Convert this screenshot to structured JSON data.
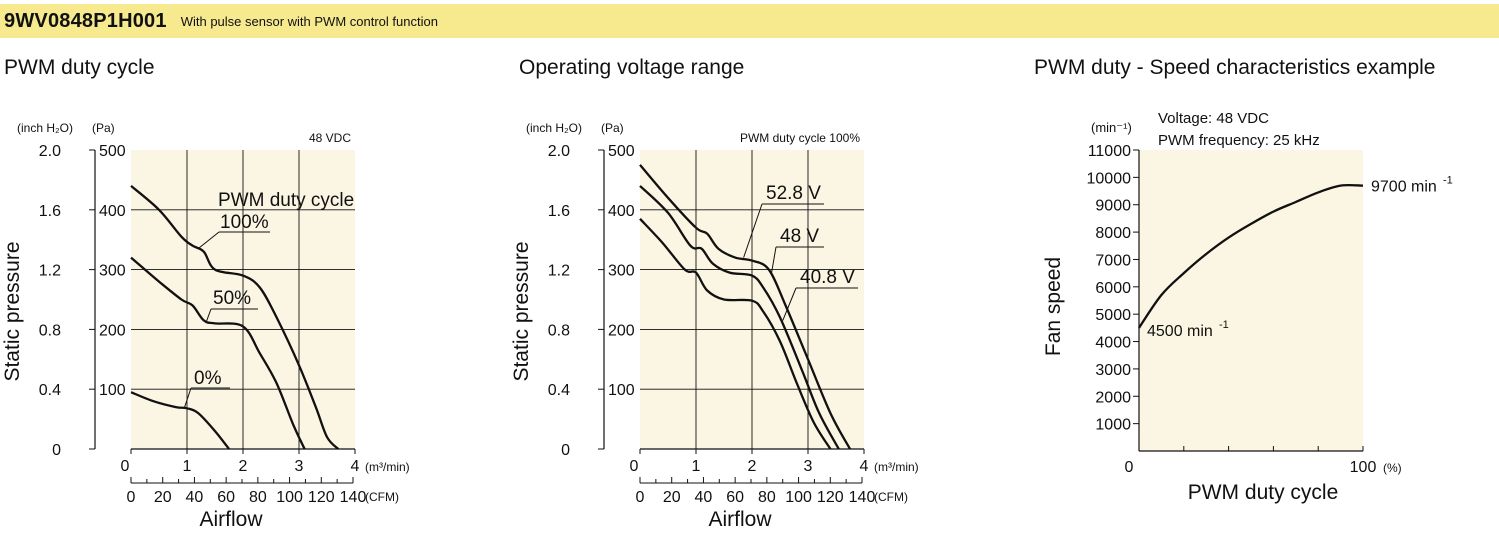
{
  "header": {
    "model": "9WV0848P1H001",
    "description": "With pulse sensor with PWM control function",
    "accent_color": "#f7e98e"
  },
  "chart_data": [
    {
      "type": "line",
      "title": "PWM duty cycle",
      "condition_label": "48 VDC",
      "ylabel": "Static pressure",
      "xlabel": "Airflow",
      "y_unit_left": "(inch H₂O)",
      "y_unit_right": "(Pa)",
      "x_unit_top": "(m³/min)",
      "x_unit_bottom": "(CFM)",
      "x_ticks": [
        "0",
        "1",
        "2",
        "3",
        "4"
      ],
      "x_ticks_cfm": [
        "0",
        "20",
        "40",
        "60",
        "80",
        "100",
        "120",
        "140"
      ],
      "y_ticks_inch": [
        "0",
        "0.4",
        "0.8",
        "1.2",
        "1.6",
        "2.0"
      ],
      "y_ticks_pa": [
        "100",
        "200",
        "300",
        "400",
        "500"
      ],
      "xlim": [
        0,
        4
      ],
      "ylim": [
        0,
        500
      ],
      "grid": true,
      "annotation_title": "PWM duty cycle",
      "series": [
        {
          "name": "100%",
          "x": [
            0,
            0.5,
            0.9,
            1.1,
            1.3,
            1.5,
            2.0,
            2.3,
            2.6,
            3.0,
            3.3,
            3.5,
            3.7
          ],
          "y": [
            440,
            400,
            355,
            340,
            330,
            300,
            290,
            270,
            220,
            140,
            70,
            20,
            0
          ]
        },
        {
          "name": "50%",
          "x": [
            0,
            0.5,
            0.9,
            1.1,
            1.3,
            1.5,
            2.0,
            2.3,
            2.6,
            2.9,
            3.1
          ],
          "y": [
            320,
            280,
            250,
            240,
            215,
            210,
            205,
            160,
            110,
            40,
            0
          ]
        },
        {
          "name": "0%",
          "x": [
            0,
            0.4,
            0.8,
            1.0,
            1.2,
            1.5,
            1.75
          ],
          "y": [
            95,
            80,
            70,
            68,
            60,
            30,
            0
          ]
        }
      ]
    },
    {
      "type": "line",
      "title": "Operating voltage range",
      "condition_label": "PWM duty cycle 100%",
      "ylabel": "Static pressure",
      "xlabel": "Airflow",
      "y_unit_left": "(inch H₂O)",
      "y_unit_right": "(Pa)",
      "x_unit_top": "(m³/min)",
      "x_unit_bottom": "(CFM)",
      "x_ticks": [
        "0",
        "1",
        "2",
        "3",
        "4"
      ],
      "x_ticks_cfm": [
        "0",
        "20",
        "40",
        "60",
        "80",
        "100",
        "120",
        "140"
      ],
      "y_ticks_inch": [
        "0",
        "0.4",
        "0.8",
        "1.2",
        "1.6",
        "2.0"
      ],
      "y_ticks_pa": [
        "100",
        "200",
        "300",
        "400",
        "500"
      ],
      "xlim": [
        0,
        4
      ],
      "ylim": [
        0,
        500
      ],
      "grid": true,
      "series": [
        {
          "name": "52.8 V",
          "x": [
            0,
            0.5,
            1.0,
            1.2,
            1.4,
            1.7,
            2.0,
            2.3,
            2.6,
            3.0,
            3.4,
            3.75
          ],
          "y": [
            475,
            420,
            370,
            360,
            335,
            320,
            315,
            300,
            240,
            150,
            60,
            0
          ]
        },
        {
          "name": "48 V",
          "x": [
            0,
            0.5,
            0.9,
            1.1,
            1.3,
            1.6,
            2.0,
            2.2,
            2.5,
            2.9,
            3.2,
            3.55
          ],
          "y": [
            440,
            395,
            340,
            335,
            310,
            295,
            290,
            270,
            220,
            130,
            60,
            0
          ]
        },
        {
          "name": "40.8 V",
          "x": [
            0,
            0.4,
            0.8,
            1.0,
            1.2,
            1.5,
            2.0,
            2.2,
            2.5,
            2.8,
            3.1,
            3.4
          ],
          "y": [
            385,
            345,
            300,
            295,
            265,
            250,
            248,
            230,
            180,
            110,
            45,
            0
          ]
        }
      ]
    },
    {
      "type": "line",
      "title": "PWM duty - Speed characteristics example",
      "condition_lines": [
        "Voltage: 48 VDC",
        "PWM frequency: 25 kHz"
      ],
      "ylabel": "Fan speed",
      "xlabel": "PWM duty cycle",
      "y_unit": "(min⁻¹)",
      "x_unit": "(%)",
      "y_ticks": [
        "1000",
        "2000",
        "3000",
        "4000",
        "5000",
        "6000",
        "7000",
        "8000",
        "9000",
        "10000",
        "11000"
      ],
      "x_tick_labels": [
        "0",
        "100"
      ],
      "xlim": [
        0,
        100
      ],
      "ylim": [
        0,
        11000
      ],
      "grid": false,
      "start_label": "4500 min",
      "end_label": "9700 min",
      "unit_superscript": "-1",
      "series": [
        {
          "x": [
            0,
            10,
            20,
            30,
            40,
            50,
            60,
            70,
            80,
            90,
            100
          ],
          "y": [
            4500,
            5700,
            6500,
            7200,
            7800,
            8300,
            8750,
            9100,
            9450,
            9700,
            9700
          ]
        }
      ]
    }
  ]
}
